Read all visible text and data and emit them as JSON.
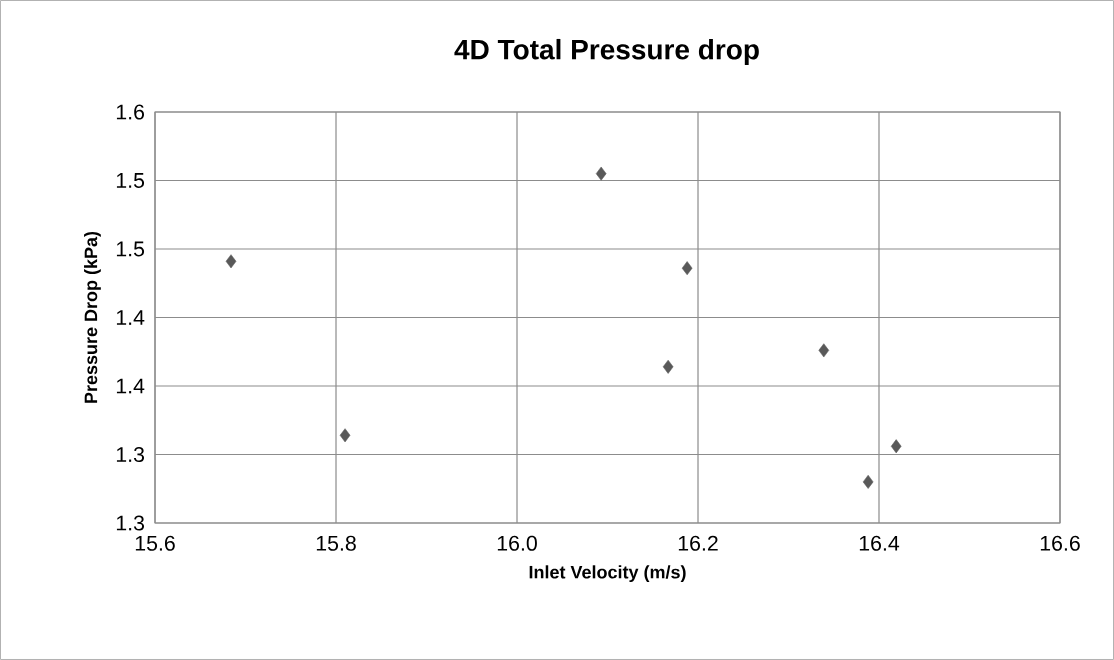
{
  "chart_data": {
    "type": "scatter",
    "title": "4D Total  Pressure drop",
    "xlabel": "Inlet Velocity (m/s)",
    "ylabel": "Pressure Drop (kPa)",
    "x": [
      15.684,
      15.81,
      16.093,
      16.188,
      16.167,
      16.339,
      16.388,
      16.419
    ],
    "series": [
      {
        "color": "#595959",
        "values": [
          1.441,
          1.314,
          1.505,
          1.436,
          1.364,
          1.376,
          1.28,
          1.306
        ]
      }
    ],
    "xlim": [
      15.6,
      16.6
    ],
    "xticks": [
      {
        "value": 15.6,
        "label": "15.6"
      },
      {
        "value": 15.8,
        "label": "15.8"
      },
      {
        "value": 16.0,
        "label": "16.0"
      },
      {
        "value": 16.2,
        "label": "16.2"
      },
      {
        "value": 16.4,
        "label": "16.4"
      },
      {
        "value": 16.6,
        "label": "16.6"
      }
    ],
    "ylim": [
      1.25,
      1.55
    ],
    "yticks": [
      {
        "value": 1.25,
        "label": "1.3"
      },
      {
        "value": 1.3,
        "label": "1.3"
      },
      {
        "value": 1.35,
        "label": "1.4"
      },
      {
        "value": 1.4,
        "label": "1.4"
      },
      {
        "value": 1.45,
        "label": "1.5"
      },
      {
        "value": 1.5,
        "label": "1.5"
      },
      {
        "value": 1.55,
        "label": "1.6"
      }
    ],
    "grid": true,
    "marker": "diamond"
  }
}
